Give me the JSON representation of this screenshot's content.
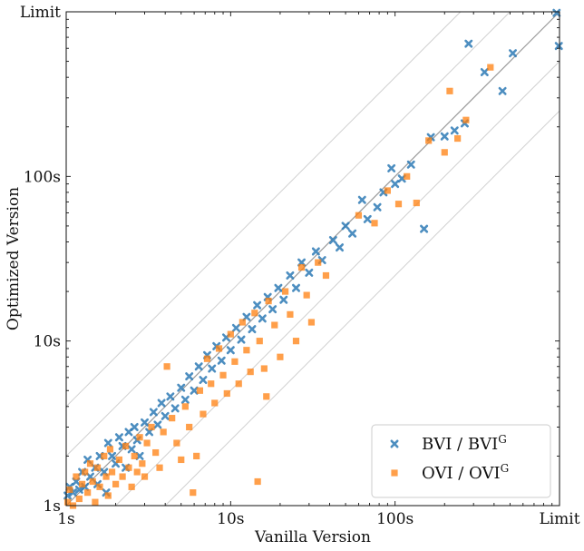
{
  "chart_data": {
    "type": "scatter",
    "title": "",
    "xlabel": "Vanilla Version",
    "ylabel": "Optimized Version",
    "xscale": "log",
    "yscale": "log",
    "xlim": [
      1,
      1000
    ],
    "ylim": [
      1,
      1000
    ],
    "x_tick_labels": [
      "1s",
      "10s",
      "100s",
      "Limit"
    ],
    "y_tick_labels": [
      "1s",
      "10s",
      "100s",
      "Limit"
    ],
    "tick_values": [
      1,
      10,
      100,
      1000
    ],
    "diagonal_line": "y = x",
    "reference_lines": "y = x times 1/4, 1/2, 2, 4",
    "grid": false,
    "legend_placement": "lower-right",
    "series": [
      {
        "name": "BVI / BVI",
        "name_sup": "G",
        "marker": "x",
        "color": "#2e7bb6",
        "points": [
          [
            1.02,
            1.15
          ],
          [
            1.05,
            1.3
          ],
          [
            1.1,
            1.2
          ],
          [
            1.15,
            1.4
          ],
          [
            1.2,
            1.25
          ],
          [
            1.25,
            1.6
          ],
          [
            1.3,
            1.3
          ],
          [
            1.35,
            1.9
          ],
          [
            1.4,
            1.5
          ],
          [
            1.5,
            1.7
          ],
          [
            1.55,
            1.35
          ],
          [
            1.6,
            2.0
          ],
          [
            1.7,
            1.6
          ],
          [
            1.75,
            1.2
          ],
          [
            1.8,
            2.4
          ],
          [
            1.9,
            2.0
          ],
          [
            2.0,
            1.8
          ],
          [
            2.1,
            2.6
          ],
          [
            2.2,
            2.3
          ],
          [
            2.3,
            1.7
          ],
          [
            2.4,
            2.8
          ],
          [
            2.5,
            2.2
          ],
          [
            2.6,
            3.0
          ],
          [
            2.7,
            2.5
          ],
          [
            2.8,
            2.0
          ],
          [
            3.0,
            3.2
          ],
          [
            3.2,
            2.8
          ],
          [
            3.4,
            3.7
          ],
          [
            3.6,
            3.1
          ],
          [
            3.8,
            4.2
          ],
          [
            4.0,
            3.5
          ],
          [
            4.3,
            4.6
          ],
          [
            4.6,
            3.9
          ],
          [
            5.0,
            5.2
          ],
          [
            5.3,
            4.4
          ],
          [
            5.6,
            6.1
          ],
          [
            6.0,
            5.0
          ],
          [
            6.4,
            7.0
          ],
          [
            6.8,
            5.8
          ],
          [
            7.2,
            8.2
          ],
          [
            7.7,
            6.8
          ],
          [
            8.2,
            9.3
          ],
          [
            8.8,
            7.6
          ],
          [
            9.4,
            10.5
          ],
          [
            10.0,
            8.8
          ],
          [
            10.8,
            12.0
          ],
          [
            11.6,
            10.2
          ],
          [
            12.5,
            14.0
          ],
          [
            13.5,
            11.8
          ],
          [
            14.5,
            16.5
          ],
          [
            15.6,
            13.7
          ],
          [
            16.8,
            18.5
          ],
          [
            18.0,
            15.6
          ],
          [
            19.5,
            21.0
          ],
          [
            21.0,
            17.8
          ],
          [
            23,
            25
          ],
          [
            25,
            21
          ],
          [
            27,
            30
          ],
          [
            30,
            26
          ],
          [
            33,
            35
          ],
          [
            36,
            31
          ],
          [
            42,
            41
          ],
          [
            46,
            37
          ],
          [
            50,
            50
          ],
          [
            55,
            45
          ],
          [
            63,
            72
          ],
          [
            68,
            55
          ],
          [
            78,
            65
          ],
          [
            85,
            80
          ],
          [
            95,
            112
          ],
          [
            100,
            90
          ],
          [
            110,
            97
          ],
          [
            125,
            118
          ],
          [
            150,
            48
          ],
          [
            165,
            173
          ],
          [
            200,
            175
          ],
          [
            230,
            190
          ],
          [
            265,
            210
          ],
          [
            280,
            640
          ],
          [
            350,
            430
          ],
          [
            450,
            330
          ],
          [
            520,
            560
          ],
          [
            960,
            985
          ],
          [
            990,
            620
          ]
        ]
      },
      {
        "name": "OVI / OVI",
        "name_sup": "G",
        "marker": "s",
        "color": "#ff7f0e",
        "points": [
          [
            1.02,
            1.05
          ],
          [
            1.05,
            1.25
          ],
          [
            1.1,
            1.0
          ],
          [
            1.15,
            1.5
          ],
          [
            1.2,
            1.1
          ],
          [
            1.25,
            1.35
          ],
          [
            1.3,
            1.6
          ],
          [
            1.35,
            1.2
          ],
          [
            1.4,
            1.8
          ],
          [
            1.45,
            1.4
          ],
          [
            1.5,
            1.05
          ],
          [
            1.55,
            1.7
          ],
          [
            1.6,
            1.3
          ],
          [
            1.7,
            2.0
          ],
          [
            1.75,
            1.5
          ],
          [
            1.8,
            1.15
          ],
          [
            1.85,
            2.2
          ],
          [
            1.9,
            1.6
          ],
          [
            2.0,
            1.35
          ],
          [
            2.1,
            1.9
          ],
          [
            2.2,
            1.5
          ],
          [
            2.3,
            2.3
          ],
          [
            2.4,
            1.7
          ],
          [
            2.5,
            1.3
          ],
          [
            2.6,
            2.0
          ],
          [
            2.7,
            1.6
          ],
          [
            2.8,
            2.6
          ],
          [
            2.9,
            1.8
          ],
          [
            3.0,
            1.5
          ],
          [
            3.1,
            2.4
          ],
          [
            3.3,
            3.0
          ],
          [
            3.5,
            2.1
          ],
          [
            3.7,
            1.7
          ],
          [
            3.9,
            2.8
          ],
          [
            4.1,
            7.0
          ],
          [
            4.4,
            3.4
          ],
          [
            4.7,
            2.4
          ],
          [
            5.0,
            1.9
          ],
          [
            5.3,
            4.0
          ],
          [
            5.6,
            3.0
          ],
          [
            5.9,
            1.2
          ],
          [
            6.2,
            2.0
          ],
          [
            6.5,
            5.0
          ],
          [
            6.8,
            3.6
          ],
          [
            7.2,
            7.8
          ],
          [
            7.6,
            5.5
          ],
          [
            8.0,
            4.2
          ],
          [
            8.5,
            9.0
          ],
          [
            9.0,
            6.2
          ],
          [
            9.5,
            4.8
          ],
          [
            10.0,
            11.0
          ],
          [
            10.6,
            7.5
          ],
          [
            11.2,
            5.5
          ],
          [
            11.8,
            13.0
          ],
          [
            12.5,
            8.8
          ],
          [
            13.2,
            6.5
          ],
          [
            14.0,
            14.8
          ],
          [
            14.6,
            1.4
          ],
          [
            15.0,
            10.0
          ],
          [
            16.0,
            6.8
          ],
          [
            16.5,
            4.6
          ],
          [
            17.0,
            17.5
          ],
          [
            18.5,
            12.5
          ],
          [
            20,
            8.0
          ],
          [
            21.5,
            20.0
          ],
          [
            23,
            14.5
          ],
          [
            25,
            10.0
          ],
          [
            27,
            28.0
          ],
          [
            29,
            19.0
          ],
          [
            31,
            13.0
          ],
          [
            34,
            30.0
          ],
          [
            38,
            25.0
          ],
          [
            60,
            58.0
          ],
          [
            75,
            52.0
          ],
          [
            90,
            82.0
          ],
          [
            105,
            68.0
          ],
          [
            118,
            100.0
          ],
          [
            135,
            69.0
          ],
          [
            160,
            165.0
          ],
          [
            200,
            140.0
          ],
          [
            215,
            330.0
          ],
          [
            240,
            170.0
          ],
          [
            270,
            220.0
          ],
          [
            380,
            460.0
          ]
        ]
      }
    ]
  }
}
